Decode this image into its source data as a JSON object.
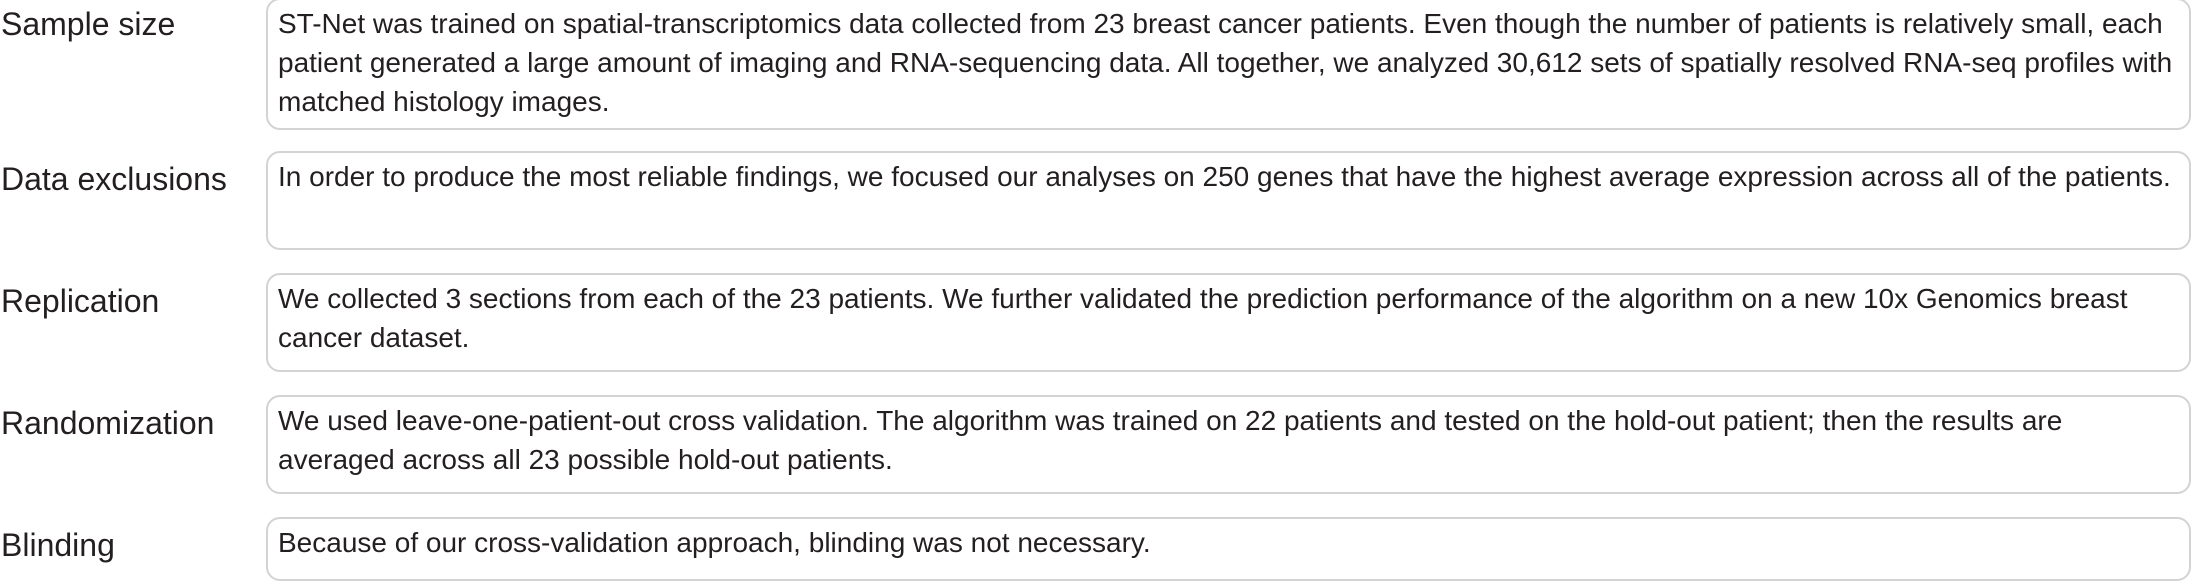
{
  "sections": [
    {
      "label": "Sample size",
      "text": "ST-Net was trained on spatial-transcriptomics data collected from 23 breast cancer patients. Even though the number of patients is relatively small, each patient generated a large amount of imaging and RNA-sequencing data. All together, we analyzed 30,612 sets of spatially resolved RNA-seq profiles with matched histology images."
    },
    {
      "label": "Data exclusions",
      "text": "In order to produce the most reliable findings, we focused our analyses on 250 genes that have the highest average expression across all of the patients."
    },
    {
      "label": "Replication",
      "text": "We collected 3 sections from each of the 23 patients. We further validated the prediction performance of the algorithm on a new 10x Genomics breast cancer dataset."
    },
    {
      "label": "Randomization",
      "text": "We used leave-one-patient-out cross validation. The algorithm was trained on 22 patients and tested on the hold-out patient; then the results are averaged across all 23 possible hold-out patients."
    },
    {
      "label": "Blinding",
      "text": "Because of our cross-validation approach, blinding was not necessary."
    }
  ]
}
